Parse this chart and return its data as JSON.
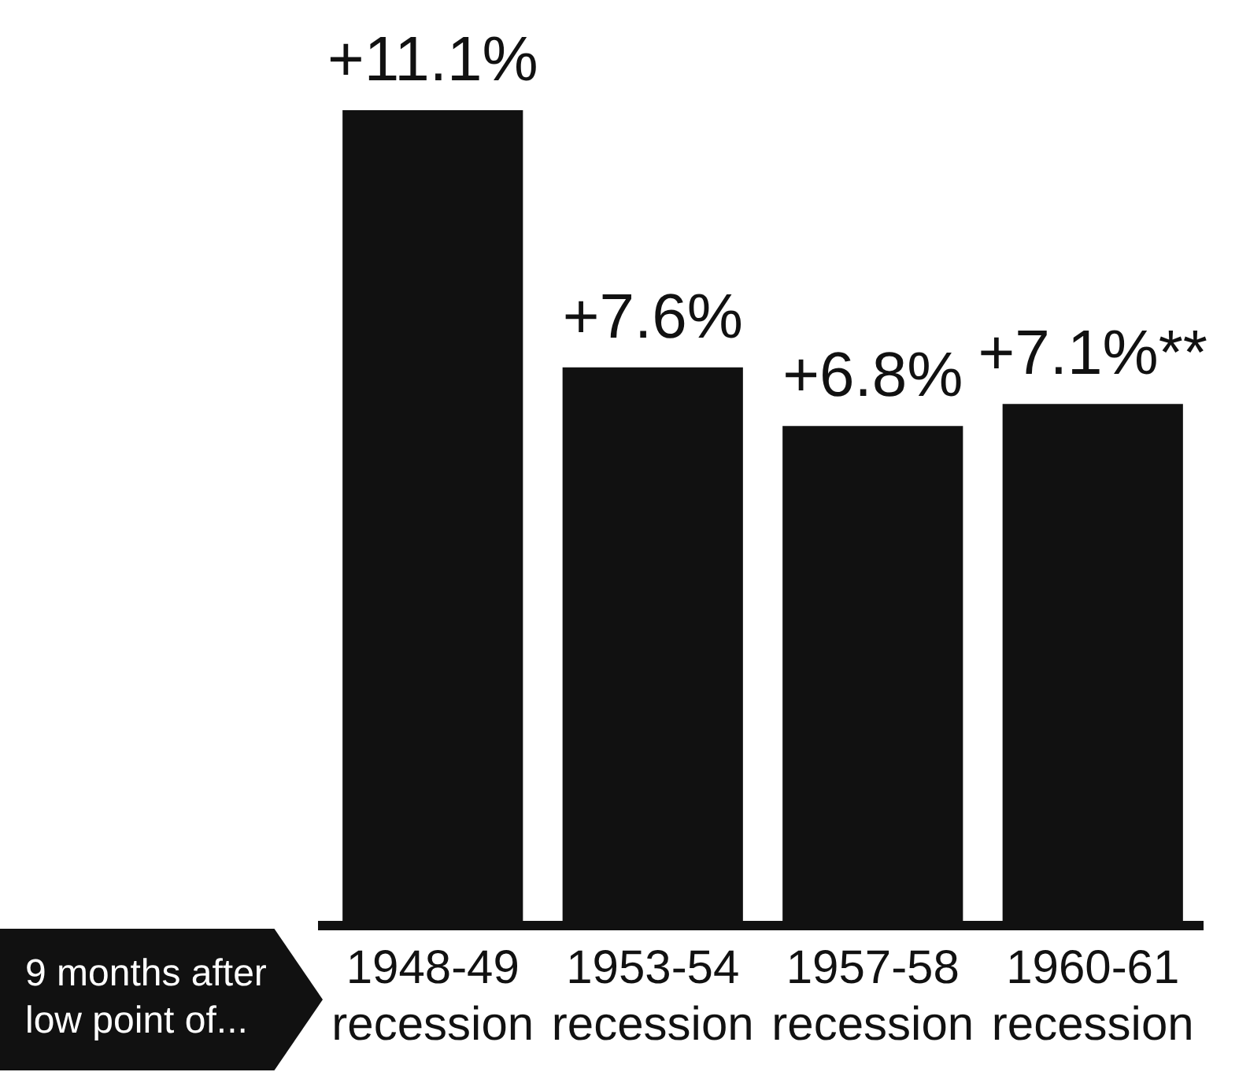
{
  "chart_data": {
    "type": "bar",
    "categories": [
      "1948-49 recession",
      "1953-54 recession",
      "1957-58 recession",
      "1960-61 recession"
    ],
    "values": [
      11.1,
      7.6,
      6.8,
      7.1
    ],
    "value_labels": [
      "+11.1%",
      "+7.6%",
      "+6.8%",
      "+7.1%**"
    ],
    "color": "#111111",
    "tick_labels": "x",
    "annotations": [
      "9 months after low point of..."
    ]
  }
}
